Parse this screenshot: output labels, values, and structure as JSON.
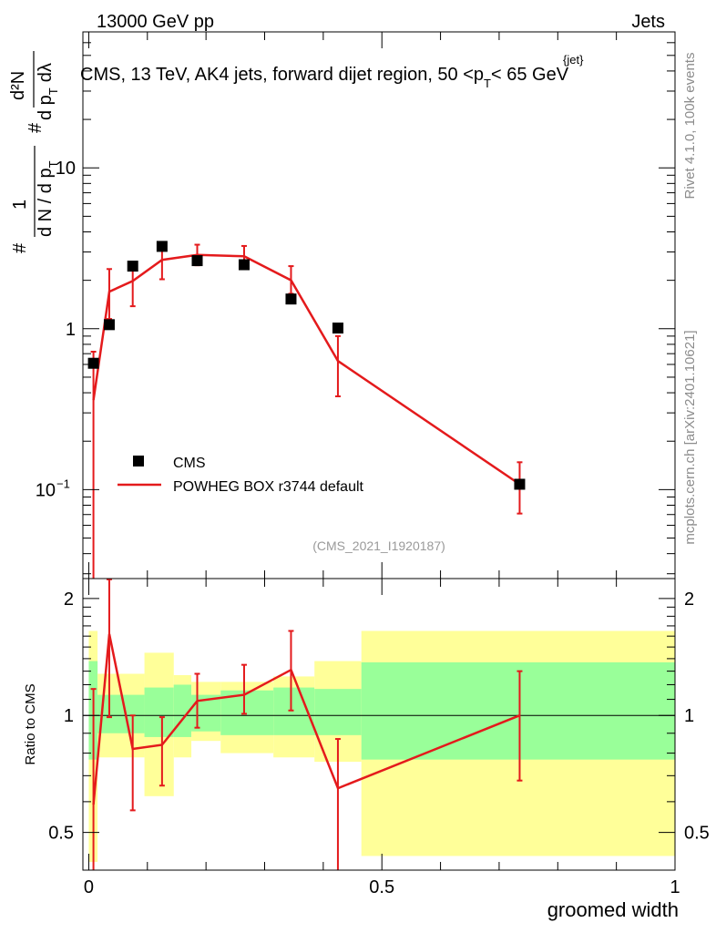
{
  "header": {
    "left": "13000 GeV pp",
    "right": "Jets"
  },
  "side_labels": {
    "rivet": "Rivet 4.1.0,  100k events",
    "mcplots": "mcplots.cern.ch [arXiv:2401.10621]"
  },
  "chart_data": [
    {
      "type": "scatter",
      "panel": "main",
      "title": {
        "main": "CMS, 13 TeV, AK4 jets, forward dijet region, 50 <p",
        "sub": "T",
        "sup": "{jet}",
        "tail": "< 65 GeV"
      },
      "ylabel": {
        "hash1": "#",
        "one": "1",
        "dn_dpt": "d N / d p",
        "sub_t": "T",
        "hash2": "#",
        "d2n": "d²N",
        "dpt_dl": "d p",
        "dl": "dλ"
      },
      "yscale": "log",
      "ylim": [
        0.028,
        70
      ],
      "xlim": [
        -0.01,
        1.0
      ],
      "yticks": [
        {
          "value": 10,
          "label": "10"
        },
        {
          "value": 1,
          "label": "1"
        },
        {
          "value": 0.1,
          "label": "10",
          "exp": "−1"
        }
      ],
      "annotation": "(CMS_2021_I1920187)",
      "legend": {
        "position": "bottom-left",
        "entries": [
          {
            "label": "CMS",
            "marker": "square",
            "color": "#000000"
          },
          {
            "label": "POWHEG BOX r3744 default",
            "marker": "line",
            "color": "#e41a1c"
          }
        ]
      },
      "series": [
        {
          "name": "CMS",
          "x": [
            0.008,
            0.035,
            0.075,
            0.125,
            0.185,
            0.265,
            0.345,
            0.425,
            0.735
          ],
          "y": [
            0.61,
            1.06,
            2.45,
            3.25,
            2.65,
            2.5,
            1.53,
            1.01,
            0.108
          ]
        },
        {
          "name": "POWHEG BOX r3744 default",
          "bins": [
            [
              0.0,
              0.015
            ],
            [
              0.015,
              0.055
            ],
            [
              0.055,
              0.095
            ],
            [
              0.095,
              0.155
            ],
            [
              0.155,
              0.215
            ],
            [
              0.215,
              0.315
            ],
            [
              0.315,
              0.375
            ],
            [
              0.375,
              0.465
            ],
            [
              0.465,
              1.0
            ]
          ],
          "x": [
            0.008,
            0.035,
            0.075,
            0.125,
            0.185,
            0.265,
            0.345,
            0.425,
            0.735
          ],
          "y": [
            0.36,
            1.7,
            1.98,
            2.68,
            2.88,
            2.82,
            2.0,
            0.63,
            0.108
          ],
          "yerr_low": [
            0.36,
            0.55,
            0.6,
            0.65,
            0.4,
            0.3,
            0.35,
            0.25,
            0.037
          ],
          "yerr_high": [
            0.36,
            0.65,
            0.6,
            0.65,
            0.45,
            0.45,
            0.45,
            0.27,
            0.04
          ]
        }
      ]
    },
    {
      "type": "line",
      "panel": "ratio",
      "ylabel": "Ratio to CMS",
      "xlabel": "groomed width",
      "ylim": [
        0.4,
        2.25
      ],
      "yscale": "log",
      "xlim": [
        -0.01,
        1.0
      ],
      "reference": 1,
      "yticks": [
        {
          "value": 2,
          "label": "2"
        },
        {
          "value": 1,
          "label": "1"
        },
        {
          "value": 0.5,
          "label": "0.5"
        }
      ],
      "xticks": [
        {
          "value": 0,
          "label": "0"
        },
        {
          "value": 0.5,
          "label": "0.5"
        },
        {
          "value": 1,
          "label": "1"
        }
      ],
      "bands": {
        "outer_color": "#ffff99",
        "inner_color": "#99ff99",
        "bins": [
          [
            0.0,
            0.015
          ],
          [
            0.015,
            0.095
          ],
          [
            0.095,
            0.145
          ],
          [
            0.145,
            0.175
          ],
          [
            0.175,
            0.225
          ],
          [
            0.225,
            0.315
          ],
          [
            0.315,
            0.385
          ],
          [
            0.385,
            0.465
          ],
          [
            0.465,
            1.0
          ]
        ],
        "outer": [
          [
            0.42,
            1.65
          ],
          [
            0.78,
            1.28
          ],
          [
            0.62,
            1.45
          ],
          [
            0.78,
            1.27
          ],
          [
            0.86,
            1.22
          ],
          [
            0.8,
            1.22
          ],
          [
            0.78,
            1.26
          ],
          [
            0.76,
            1.38
          ],
          [
            0.435,
            1.65
          ]
        ],
        "inner": [
          [
            0.77,
            1.38
          ],
          [
            0.9,
            1.13
          ],
          [
            0.88,
            1.18
          ],
          [
            0.88,
            1.2
          ],
          [
            0.91,
            1.13
          ],
          [
            0.89,
            1.16
          ],
          [
            0.89,
            1.18
          ],
          [
            0.89,
            1.17
          ],
          [
            0.77,
            1.37
          ]
        ]
      },
      "series": [
        {
          "name": "POWHEG BOX r3744 default",
          "x": [
            0.008,
            0.035,
            0.075,
            0.125,
            0.185,
            0.265,
            0.345,
            0.425,
            0.735
          ],
          "y": [
            0.59,
            1.62,
            0.82,
            0.84,
            1.09,
            1.13,
            1.31,
            0.65,
            1.0
          ],
          "yerr_low": [
            0.59,
            0.63,
            0.25,
            0.18,
            0.16,
            0.12,
            0.28,
            0.3,
            0.32
          ],
          "yerr_high": [
            0.58,
            0.62,
            0.18,
            0.15,
            0.19,
            0.22,
            0.34,
            0.22,
            0.3
          ]
        }
      ]
    }
  ]
}
